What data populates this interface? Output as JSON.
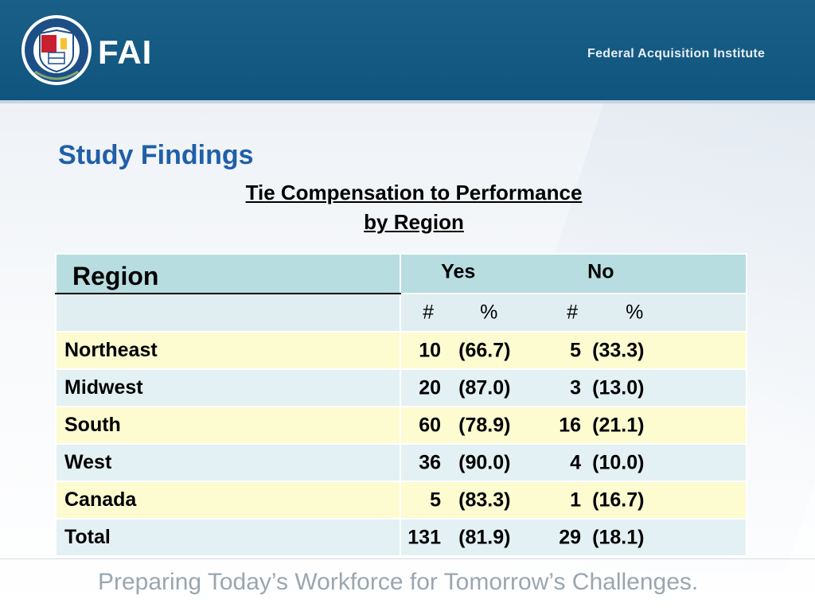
{
  "header": {
    "logo_text": "FAI",
    "org_name": "Federal Acquisition Institute",
    "seal_text": "FEDERAL ACQUISITION INSTITUTE · UNITED STATES OF AMERICA"
  },
  "slide": {
    "title": "Study Findings",
    "subtitle_line1": "Tie Compensation to Performance",
    "subtitle_line2": "by Region"
  },
  "table": {
    "region_header": "Region",
    "yes_header": "Yes",
    "no_header": "No",
    "count_symbol": "#",
    "pct_symbol": "%",
    "rows": [
      {
        "region": "Northeast",
        "yes_n": "10",
        "yes_pct": "(66.7)",
        "no_n": "5",
        "no_pct": "(33.3)"
      },
      {
        "region": "Midwest",
        "yes_n": "20",
        "yes_pct": "(87.0)",
        "no_n": "3",
        "no_pct": "(13.0)"
      },
      {
        "region": "South",
        "yes_n": "60",
        "yes_pct": "(78.9)",
        "no_n": "16",
        "no_pct": "(21.1)"
      },
      {
        "region": "West",
        "yes_n": "36",
        "yes_pct": "(90.0)",
        "no_n": "4",
        "no_pct": "(10.0)"
      },
      {
        "region": "Canada",
        "yes_n": "5",
        "yes_pct": "(83.3)",
        "no_n": "1",
        "no_pct": "(16.7)"
      },
      {
        "region": "Total",
        "yes_n": "131",
        "yes_pct": "(81.9)",
        "no_n": "29",
        "no_pct": "(18.1)"
      }
    ]
  },
  "footer": {
    "tagline": "Preparing Today’s Workforce for Tomorrow’s Challenges."
  },
  "colors": {
    "header_bg": "#0f557f",
    "title": "#1f5fa8",
    "header_row": "#b7dde1",
    "odd_row": "#fdfbd0",
    "even_row": "#e4f1f4"
  }
}
